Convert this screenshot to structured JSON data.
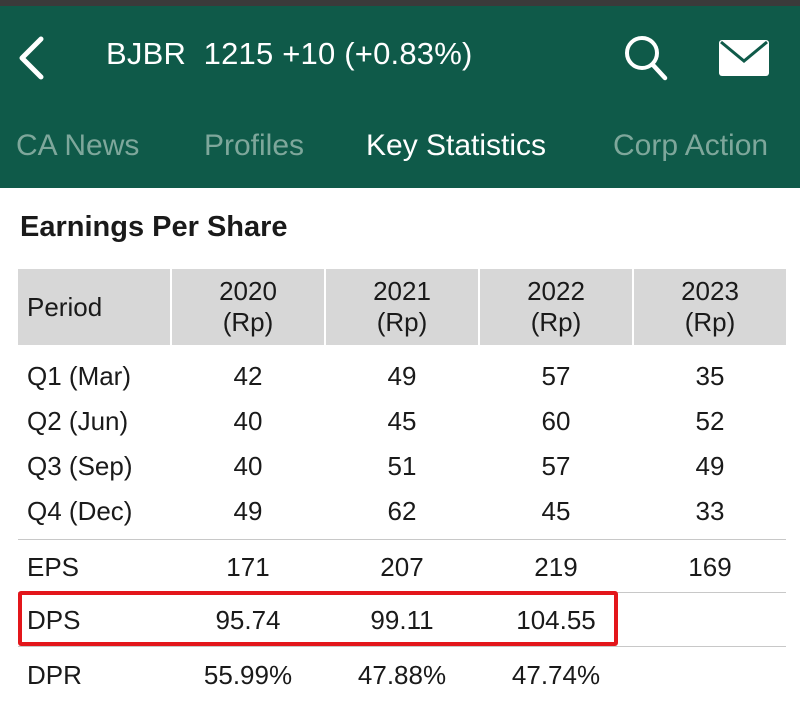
{
  "header": {
    "title": "BJBR  1215 +10 (+0.83%)",
    "background": "#0f5a49",
    "icons": {
      "back": "chevron-left-icon",
      "search": "search-icon",
      "mail": "mail-icon"
    }
  },
  "tabs": [
    {
      "label": "CA News",
      "active": false
    },
    {
      "label": "Profiles",
      "active": false
    },
    {
      "label": "Key Statistics",
      "active": true
    },
    {
      "label": "Corp Action",
      "active": false
    }
  ],
  "section": {
    "title": "Earnings Per Share"
  },
  "table": {
    "columns": [
      {
        "label": "Period",
        "unit": ""
      },
      {
        "label": "2020",
        "unit": "(Rp)"
      },
      {
        "label": "2021",
        "unit": "(Rp)"
      },
      {
        "label": "2022",
        "unit": "(Rp)"
      },
      {
        "label": "2023",
        "unit": "(Rp)"
      }
    ],
    "quarters": [
      {
        "period": "Q1 (Mar)",
        "values": [
          "42",
          "49",
          "57",
          "35"
        ]
      },
      {
        "period": "Q2 (Jun)",
        "values": [
          "40",
          "45",
          "60",
          "52"
        ]
      },
      {
        "period": "Q3 (Sep)",
        "values": [
          "40",
          "51",
          "57",
          "49"
        ]
      },
      {
        "period": "Q4 (Dec)",
        "values": [
          "49",
          "62",
          "45",
          "33"
        ]
      }
    ],
    "summary": [
      {
        "period": "EPS",
        "values": [
          "171",
          "207",
          "219",
          "169"
        ]
      },
      {
        "period": "DPS",
        "values": [
          "95.74",
          "99.11",
          "104.55",
          ""
        ]
      },
      {
        "period": "DPR",
        "values": [
          "55.99%",
          "47.88%",
          "47.74%",
          ""
        ]
      }
    ]
  },
  "highlight": {
    "row": "DPS",
    "color": "#e3161b"
  }
}
